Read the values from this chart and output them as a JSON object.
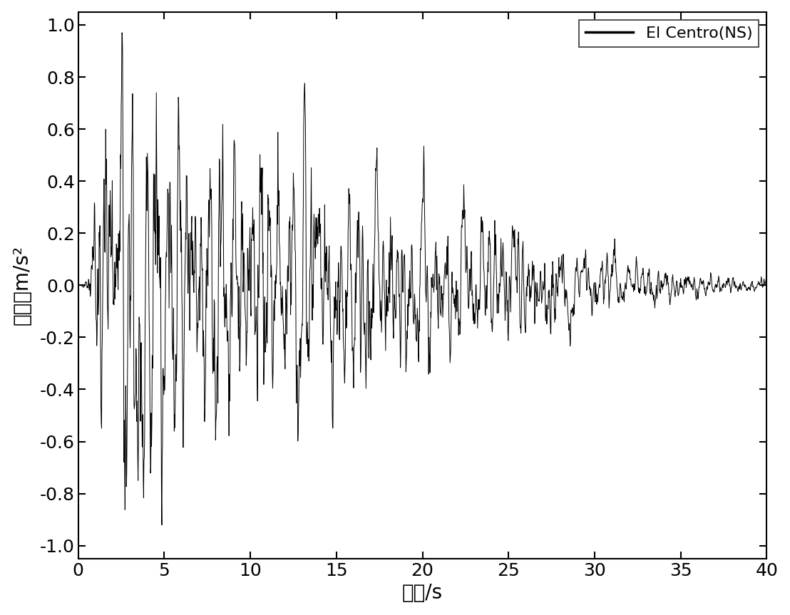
{
  "xlabel": "时间/s",
  "ylabel": "加速度m/s²",
  "xlim": [
    0,
    40
  ],
  "ylim": [
    -1.05,
    1.05
  ],
  "xticks": [
    0,
    5,
    10,
    15,
    20,
    25,
    30,
    35,
    40
  ],
  "yticks": [
    -1.0,
    -0.8,
    -0.6,
    -0.4,
    -0.2,
    0.0,
    0.2,
    0.4,
    0.6,
    0.8,
    1.0
  ],
  "legend_label": "El Centro(NS)",
  "line_color": "#000000",
  "line_width": 0.7,
  "background_color": "#ffffff",
  "dt": 0.02,
  "duration": 40.0,
  "xlabel_fontsize": 20,
  "ylabel_fontsize": 20,
  "tick_fontsize": 18,
  "legend_fontsize": 16
}
